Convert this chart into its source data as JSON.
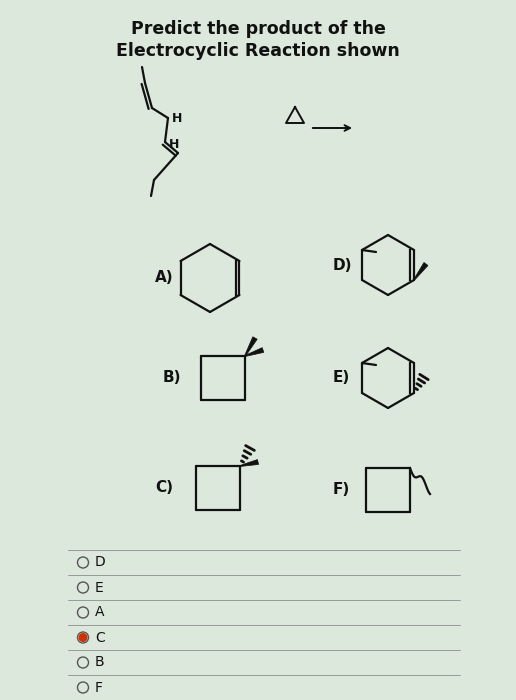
{
  "title_line1": "Predict the product of the",
  "title_line2": "Electrocyclic Reaction shown",
  "bg_color": "#dce8dc",
  "text_color": "#111111",
  "options": [
    "D",
    "E",
    "A",
    "C",
    "B",
    "F"
  ],
  "selected": "C",
  "selected_color": "#cc3300",
  "figsize": [
    5.16,
    7.0
  ],
  "dpi": 100
}
